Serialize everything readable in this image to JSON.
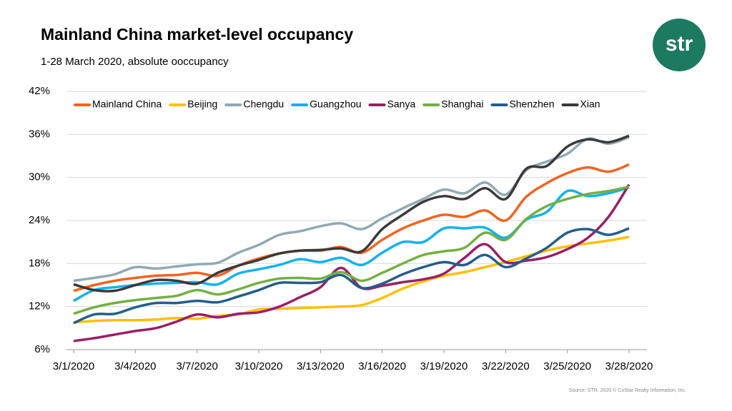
{
  "chart_data": {
    "type": "line",
    "title": "Mainland China market-level occupancy",
    "subtitle": "1-28 March 2020, absolute ooccupancy",
    "source": "Source: STR. 2020 © CoStar Realty Information, Inc.",
    "logo": "str",
    "categories": [
      "3/1/2020",
      null,
      null,
      "3/4/2020",
      null,
      null,
      "3/7/2020",
      null,
      null,
      "3/10/2020",
      null,
      null,
      "3/13/2020",
      null,
      null,
      "3/16/2020",
      null,
      null,
      "3/19/2020",
      null,
      null,
      "3/22/2020",
      null,
      null,
      "3/25/2020",
      null,
      null,
      "3/28/2020"
    ],
    "ylim": [
      6,
      42
    ],
    "yticks": [
      {
        "value": 6,
        "label": "6%"
      },
      {
        "value": 12,
        "label": "12%"
      },
      {
        "value": 18,
        "label": "18%"
      },
      {
        "value": 24,
        "label": "24%"
      },
      {
        "value": 30,
        "label": "30%"
      },
      {
        "value": 36,
        "label": "36%"
      },
      {
        "value": 42,
        "label": "42%"
      }
    ],
    "grid": true,
    "legend": "top",
    "series": [
      {
        "name": "Mainland China",
        "color": "#f4621f",
        "values": [
          14.2,
          15.0,
          15.6,
          16.0,
          16.3,
          16.4,
          16.7,
          16.3,
          17.7,
          18.7,
          19.4,
          19.8,
          19.8,
          20.3,
          19.5,
          21.3,
          22.9,
          24.0,
          24.8,
          24.5,
          25.4,
          24.0,
          27.3,
          29.2,
          30.6,
          31.4,
          30.8,
          31.8
        ]
      },
      {
        "name": "Beijing",
        "color": "#ffc000",
        "values": [
          9.8,
          10.0,
          10.1,
          10.1,
          10.2,
          10.4,
          10.3,
          10.7,
          10.9,
          11.6,
          11.7,
          11.8,
          11.9,
          12.0,
          12.2,
          13.2,
          14.5,
          15.5,
          16.3,
          16.8,
          17.5,
          18.2,
          19.0,
          19.8,
          20.4,
          20.8,
          21.2,
          21.7
        ]
      },
      {
        "name": "Chengdu",
        "color": "#8faab5",
        "values": [
          15.6,
          16.0,
          16.5,
          17.5,
          17.3,
          17.6,
          17.9,
          18.1,
          19.5,
          20.6,
          22.0,
          22.5,
          23.2,
          23.6,
          22.8,
          24.3,
          25.7,
          27.0,
          28.3,
          27.8,
          29.3,
          27.6,
          31.0,
          32.2,
          33.3,
          35.4,
          34.7,
          35.6
        ]
      },
      {
        "name": "Guangzhou",
        "color": "#12b2ef",
        "values": [
          12.8,
          14.3,
          14.7,
          15.0,
          15.2,
          15.3,
          15.4,
          15.1,
          16.6,
          17.2,
          17.8,
          18.6,
          18.2,
          18.8,
          17.8,
          19.5,
          21.0,
          21.0,
          22.9,
          22.9,
          23.0,
          21.6,
          24.1,
          25.2,
          28.1,
          27.4,
          27.8,
          28.6
        ]
      },
      {
        "name": "Sanya",
        "color": "#9b1f66",
        "values": [
          7.2,
          7.6,
          8.1,
          8.6,
          9.0,
          9.9,
          10.9,
          10.5,
          11.0,
          11.2,
          12.0,
          13.3,
          14.7,
          17.4,
          14.6,
          14.9,
          15.4,
          15.8,
          16.6,
          18.8,
          20.7,
          18.2,
          18.4,
          18.9,
          20.0,
          21.6,
          24.5,
          29.0
        ]
      },
      {
        "name": "Shanghai",
        "color": "#72b043",
        "values": [
          11.0,
          11.9,
          12.5,
          12.9,
          13.2,
          13.5,
          14.3,
          13.7,
          14.4,
          15.3,
          15.9,
          16.0,
          15.9,
          16.8,
          15.6,
          16.7,
          18.0,
          19.2,
          19.7,
          20.2,
          22.3,
          21.3,
          24.2,
          26.0,
          27.0,
          27.7,
          28.1,
          28.7
        ]
      },
      {
        "name": "Shenzhen",
        "color": "#245d8d",
        "values": [
          9.7,
          10.9,
          11.0,
          11.9,
          12.5,
          12.5,
          12.8,
          12.6,
          13.4,
          14.3,
          15.3,
          15.3,
          15.4,
          16.4,
          14.6,
          15.2,
          16.5,
          17.5,
          18.2,
          17.8,
          19.2,
          17.5,
          18.7,
          20.2,
          22.3,
          22.8,
          22.0,
          22.9
        ]
      },
      {
        "name": "Xian",
        "color": "#3a3a3a",
        "values": [
          15.1,
          14.3,
          14.2,
          15.0,
          15.7,
          15.6,
          15.2,
          16.7,
          17.7,
          18.5,
          19.4,
          19.8,
          19.9,
          20.1,
          19.7,
          22.8,
          24.8,
          26.6,
          27.4,
          27.0,
          28.5,
          27.0,
          31.2,
          31.6,
          34.3,
          35.3,
          34.9,
          35.8
        ]
      }
    ]
  }
}
